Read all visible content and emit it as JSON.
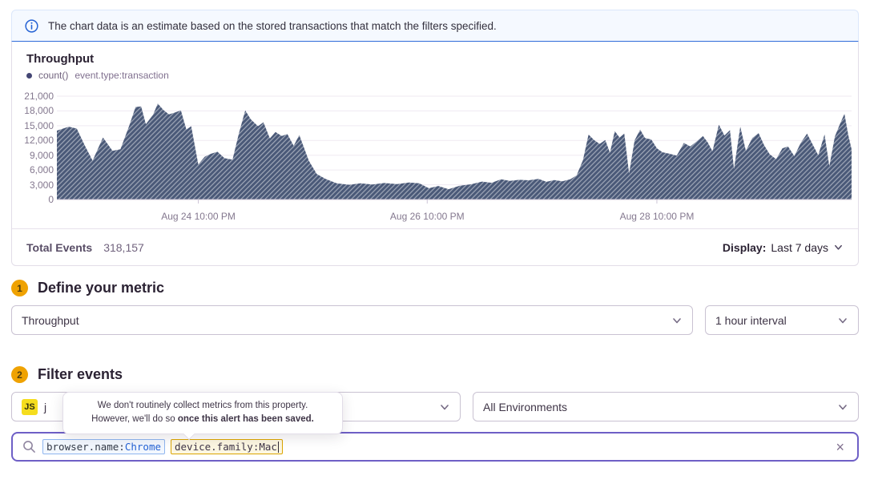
{
  "banner": {
    "text": "The chart data is an estimate based on the stored transactions that match the filters specified."
  },
  "chart_panel": {
    "title": "Throughput",
    "legend": {
      "series": "count()",
      "query": "event.type:transaction"
    },
    "footer": {
      "total_events_label": "Total Events",
      "total_events_value": "318,157",
      "display_label": "Display:",
      "display_value": "Last 7 days"
    }
  },
  "steps": {
    "step1": {
      "number": "1",
      "title": "Define your metric"
    },
    "step2": {
      "number": "2",
      "title": "Filter events"
    }
  },
  "metric": {
    "aggregate": "Throughput",
    "interval": "1 hour interval"
  },
  "filter": {
    "project": {
      "badge": "JS",
      "visible_label": "j"
    },
    "environment": "All Environments",
    "tooltip": {
      "line1": "We don't routinely collect metrics from this property.",
      "line2_normal": "However, we'll do so ",
      "line2_bold": "once this alert has been saved."
    },
    "search": {
      "tokens": [
        {
          "key": "browser.name:",
          "value": "Chrome",
          "style": "blue"
        },
        {
          "key": "device.family:",
          "value": "Mac",
          "style": "yellow"
        }
      ],
      "clear_icon": "×"
    }
  },
  "colors": {
    "accent_purple": "#6e5fc6",
    "banner_blue": "#2f6bd9",
    "step_badge_yellow": "#efa202",
    "token_blue": "#2562d4",
    "token_yellow_border": "#dba501",
    "chart_fill": "#4a5978"
  },
  "chart_data": {
    "type": "area",
    "title": "Throughput",
    "series_label": "count()",
    "series_query": "event.type:transaction",
    "ylim": [
      0,
      21000
    ],
    "y_ticks": [
      0,
      3000,
      6000,
      9000,
      12000,
      15000,
      18000,
      21000
    ],
    "x_ticks": [
      {
        "label": "Aug 24 10:00 PM",
        "pos": 0.178
      },
      {
        "label": "Aug 26 10:00 PM",
        "pos": 0.466
      },
      {
        "label": "Aug 28 10:00 PM",
        "pos": 0.755
      }
    ],
    "total_events": 318157,
    "fill_color": "#4a5978",
    "hatch_color": "rgba(255,255,255,0.45)",
    "grid": true,
    "points": [
      [
        0,
        14000
      ],
      [
        0.015,
        14800
      ],
      [
        0.025,
        14400
      ],
      [
        0.035,
        11000
      ],
      [
        0.045,
        7900
      ],
      [
        0.058,
        12600
      ],
      [
        0.07,
        9900
      ],
      [
        0.08,
        10200
      ],
      [
        0.091,
        15000
      ],
      [
        0.099,
        18800
      ],
      [
        0.106,
        18900
      ],
      [
        0.112,
        15300
      ],
      [
        0.121,
        17200
      ],
      [
        0.127,
        19500
      ],
      [
        0.134,
        18200
      ],
      [
        0.141,
        17300
      ],
      [
        0.149,
        17700
      ],
      [
        0.156,
        18100
      ],
      [
        0.163,
        14200
      ],
      [
        0.169,
        14900
      ],
      [
        0.178,
        7100
      ],
      [
        0.186,
        8700
      ],
      [
        0.194,
        9300
      ],
      [
        0.202,
        9700
      ],
      [
        0.211,
        8400
      ],
      [
        0.221,
        8100
      ],
      [
        0.229,
        13400
      ],
      [
        0.237,
        18100
      ],
      [
        0.244,
        16300
      ],
      [
        0.253,
        14900
      ],
      [
        0.26,
        15700
      ],
      [
        0.268,
        12400
      ],
      [
        0.275,
        13700
      ],
      [
        0.283,
        12900
      ],
      [
        0.29,
        13300
      ],
      [
        0.298,
        10900
      ],
      [
        0.305,
        13100
      ],
      [
        0.317,
        7900
      ],
      [
        0.327,
        5200
      ],
      [
        0.338,
        4200
      ],
      [
        0.352,
        3300
      ],
      [
        0.368,
        3000
      ],
      [
        0.382,
        3300
      ],
      [
        0.397,
        3050
      ],
      [
        0.412,
        3350
      ],
      [
        0.428,
        3150
      ],
      [
        0.443,
        3450
      ],
      [
        0.456,
        3300
      ],
      [
        0.468,
        2300
      ],
      [
        0.48,
        2750
      ],
      [
        0.493,
        2100
      ],
      [
        0.507,
        2800
      ],
      [
        0.521,
        3100
      ],
      [
        0.535,
        3650
      ],
      [
        0.547,
        3400
      ],
      [
        0.559,
        4100
      ],
      [
        0.57,
        3800
      ],
      [
        0.582,
        4000
      ],
      [
        0.594,
        3900
      ],
      [
        0.606,
        4200
      ],
      [
        0.616,
        3600
      ],
      [
        0.626,
        3950
      ],
      [
        0.636,
        3700
      ],
      [
        0.646,
        4100
      ],
      [
        0.654,
        4900
      ],
      [
        0.662,
        8000
      ],
      [
        0.669,
        13200
      ],
      [
        0.676,
        12100
      ],
      [
        0.683,
        11300
      ],
      [
        0.69,
        12100
      ],
      [
        0.696,
        9500
      ],
      [
        0.702,
        13900
      ],
      [
        0.708,
        12600
      ],
      [
        0.714,
        13400
      ],
      [
        0.72,
        5300
      ],
      [
        0.727,
        12000
      ],
      [
        0.734,
        14200
      ],
      [
        0.74,
        12500
      ],
      [
        0.748,
        12200
      ],
      [
        0.755,
        10400
      ],
      [
        0.762,
        9600
      ],
      [
        0.771,
        9300
      ],
      [
        0.78,
        8900
      ],
      [
        0.789,
        11500
      ],
      [
        0.797,
        10800
      ],
      [
        0.805,
        11800
      ],
      [
        0.813,
        12900
      ],
      [
        0.819,
        11600
      ],
      [
        0.825,
        9800
      ],
      [
        0.833,
        15200
      ],
      [
        0.84,
        13000
      ],
      [
        0.847,
        14100
      ],
      [
        0.852,
        6200
      ],
      [
        0.86,
        14800
      ],
      [
        0.867,
        9900
      ],
      [
        0.875,
        12500
      ],
      [
        0.883,
        13500
      ],
      [
        0.89,
        11000
      ],
      [
        0.897,
        9200
      ],
      [
        0.905,
        8200
      ],
      [
        0.913,
        10400
      ],
      [
        0.92,
        10800
      ],
      [
        0.928,
        8800
      ],
      [
        0.936,
        11500
      ],
      [
        0.944,
        13400
      ],
      [
        0.951,
        11200
      ],
      [
        0.958,
        9000
      ],
      [
        0.966,
        13200
      ],
      [
        0.972,
        6800
      ],
      [
        0.979,
        12800
      ],
      [
        0.986,
        15600
      ],
      [
        0.991,
        17400
      ],
      [
        0.996,
        13000
      ],
      [
        1,
        10200
      ]
    ]
  }
}
